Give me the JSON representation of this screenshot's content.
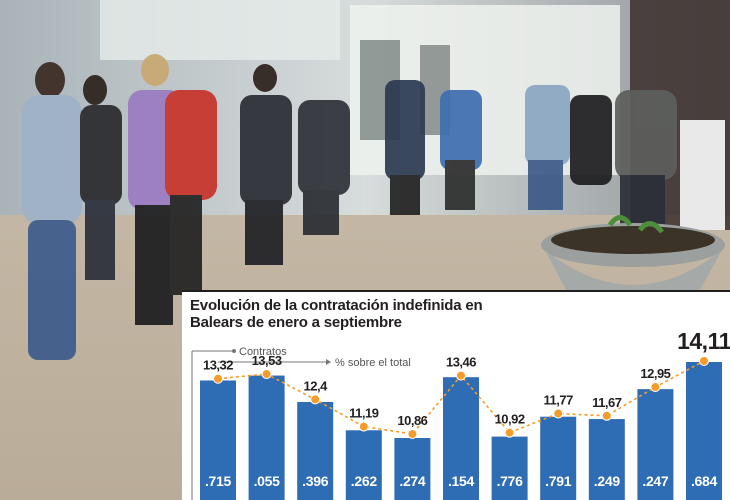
{
  "colors": {
    "bar": "#2e6db4",
    "dot": "#f39c2b",
    "line": "#f39c2b",
    "title": "#231f20",
    "panel": "#ffffff"
  },
  "image": {
    "description_icon": "photo-queue-icon"
  },
  "chart_data": {
    "type": "bar",
    "title": "Evolución de la contratación indefinida en Balears de enero a septiembre",
    "legend": {
      "bars": "Contratos",
      "line": "% sobre el total"
    },
    "series": [
      {
        "name": "Contratos",
        "type": "bar",
        "values_visible": [
          ".715",
          ".055",
          ".396",
          ".262",
          ".274",
          ".154",
          ".776",
          ".791",
          ".249",
          ".247",
          ".684"
        ]
      },
      {
        "name": "% sobre el total",
        "type": "line",
        "values": [
          13.32,
          13.53,
          12.4,
          11.19,
          10.86,
          13.46,
          10.92,
          11.77,
          11.67,
          12.95,
          14.11
        ]
      }
    ],
    "value_labels": [
      "13,32",
      "13,53",
      "12,4",
      "11,19",
      "10,86",
      "13,46",
      "10,92",
      "11,77",
      "11,67",
      "12,95",
      "14,11"
    ],
    "grid": false
  }
}
